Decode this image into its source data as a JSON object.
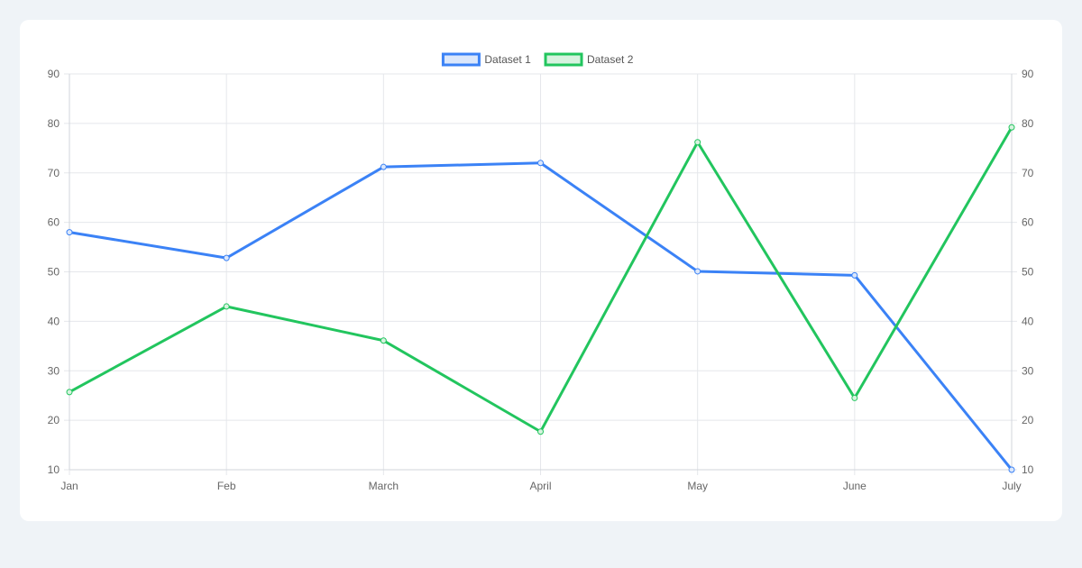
{
  "chart_data": {
    "type": "line",
    "categories": [
      "Jan",
      "Feb",
      "March",
      "April",
      "May",
      "June",
      "July"
    ],
    "series": [
      {
        "name": "Dataset 1",
        "color": "#3b82f6",
        "fill": "#dbe7fb",
        "values": [
          58,
          52.8,
          71.2,
          72,
          50.1,
          49.3,
          10
        ]
      },
      {
        "name": "Dataset 2",
        "color": "#22c55e",
        "fill": "#d7f2df",
        "values": [
          25.7,
          43,
          36.1,
          17.7,
          76.2,
          24.5,
          79.2
        ]
      }
    ],
    "ylim": [
      10,
      90
    ],
    "yticks": [
      10,
      20,
      30,
      40,
      50,
      60,
      70,
      80,
      90
    ],
    "y_axis_right": true,
    "grid": true,
    "legend_position": "top-center",
    "title": "",
    "xlabel": "",
    "ylabel": ""
  }
}
